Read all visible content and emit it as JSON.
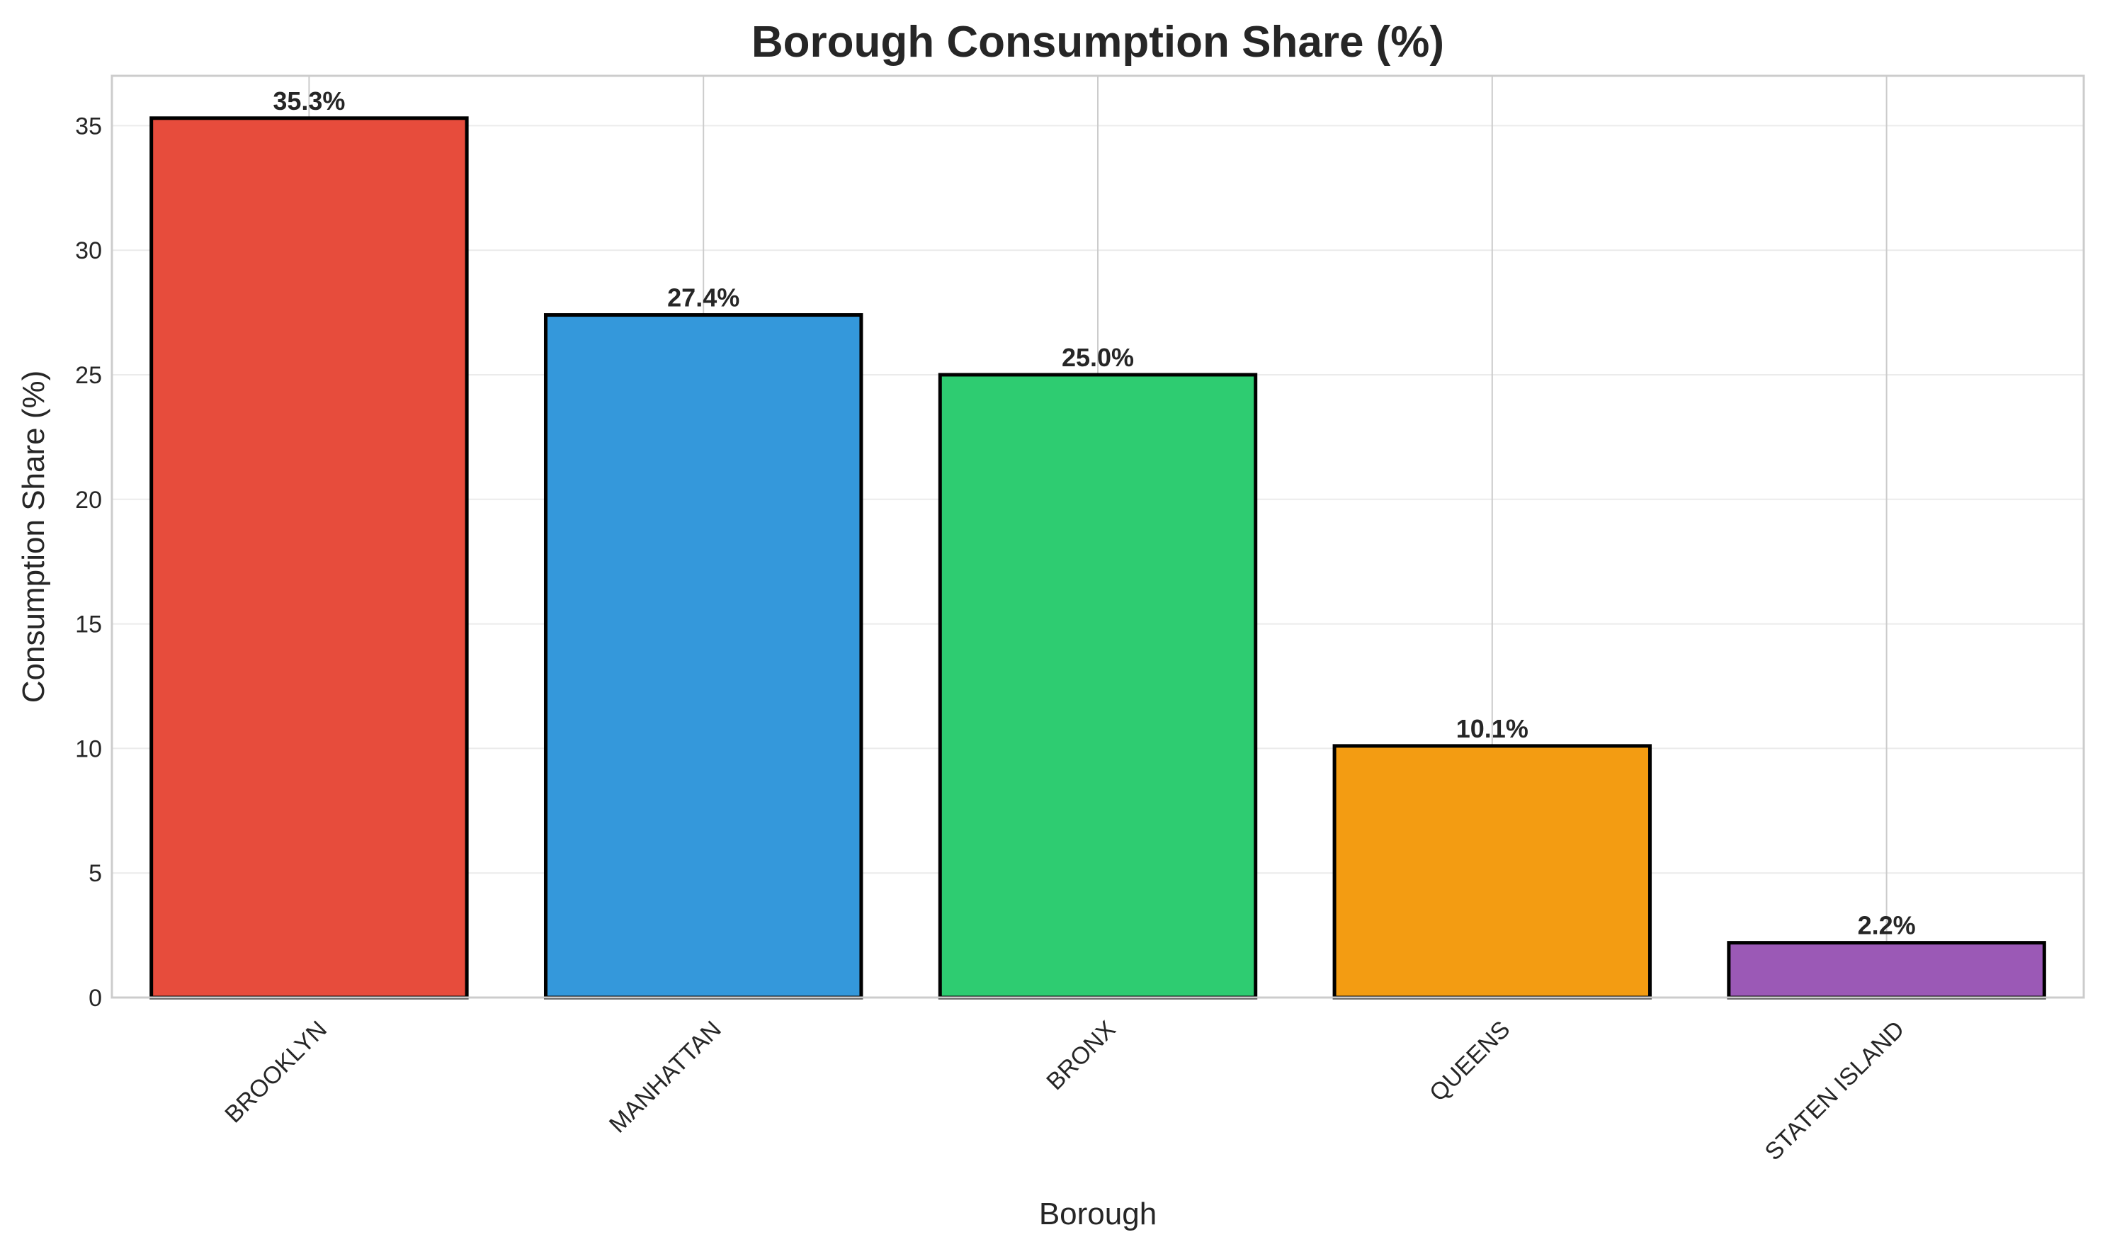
{
  "chart_data": {
    "type": "bar",
    "title": "Borough Consumption Share (%)",
    "xlabel": "Borough",
    "ylabel": "Consumption Share (%)",
    "categories": [
      "BROOKLYN",
      "MANHATTAN",
      "BRONX",
      "QUEENS",
      "STATEN ISLAND"
    ],
    "values": [
      35.3,
      27.4,
      25.0,
      10.1,
      2.2
    ],
    "value_labels": [
      "35.3%",
      "27.4%",
      "25.0%",
      "10.1%",
      "2.2%"
    ],
    "colors": [
      "#e74c3c",
      "#3498db",
      "#2ecc71",
      "#f39c12",
      "#9b59b6"
    ],
    "ylim": [
      0,
      37
    ],
    "yticks": [
      0,
      5,
      10,
      15,
      20,
      25,
      30,
      35
    ],
    "grid": true,
    "legend": "none"
  }
}
